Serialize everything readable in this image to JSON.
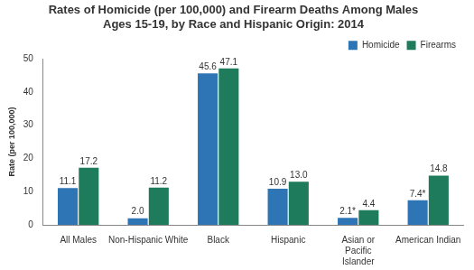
{
  "chart_data": {
    "type": "bar",
    "title": "Rates of Homicide (per 100,000) and Firearm Deaths Among Males Ages 15-19, by Race and Hispanic Origin: 2014",
    "y_label": "Rate (per 100,000)",
    "categories": [
      "All Males",
      "Non-Hispanic White",
      "Black",
      "Hispanic",
      "Asian or Pacific Islander",
      "American Indian"
    ],
    "series": [
      {
        "name": "Homicide",
        "color": "#2E75B6",
        "values": [
          11.1,
          2.0,
          45.6,
          10.9,
          2.1,
          7.4
        ],
        "value_labels": [
          "11.1",
          "2.0",
          "45.6",
          "10.9",
          "2.1*",
          "7.4*"
        ]
      },
      {
        "name": "Firearms",
        "color": "#1E7B5C",
        "values": [
          17.2,
          11.2,
          47.1,
          13.0,
          4.4,
          14.8
        ],
        "value_labels": [
          "17.2",
          "11.2",
          "47.1",
          "13.0",
          "4.4",
          "14.8"
        ]
      }
    ],
    "ylim": [
      0,
      50
    ],
    "yticks": [
      0,
      10,
      20,
      30,
      40,
      50
    ],
    "grid": false,
    "legend": "upper right",
    "data_labels": true
  }
}
